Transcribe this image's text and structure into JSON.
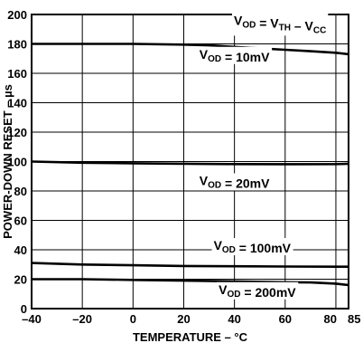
{
  "chart_data": {
    "type": "line",
    "xlabel": "TEMPERATURE – °C",
    "ylabel": "POWER-DOWN RESET – µs",
    "xlim": [
      -40,
      85
    ],
    "ylim": [
      0,
      200
    ],
    "x_ticks": [
      -40,
      -20,
      0,
      20,
      40,
      60,
      80,
      85
    ],
    "x_tick_labels": [
      "–40",
      "–20",
      "0",
      "20",
      "40",
      "60",
      "80",
      "85"
    ],
    "y_ticks": [
      0,
      20,
      40,
      60,
      80,
      100,
      120,
      140,
      160,
      180,
      200
    ],
    "y_tick_labels": [
      "0",
      "20",
      "40",
      "60",
      "80",
      "100",
      "120",
      "140",
      "160",
      "180",
      "200"
    ],
    "grid": true,
    "annotation": {
      "parts": [
        {
          "text": "V",
          "sub": false
        },
        {
          "text": "OD",
          "sub": true
        },
        {
          "text": " = V",
          "sub": false
        },
        {
          "text": "TH",
          "sub": true
        },
        {
          "text": " – V",
          "sub": false
        },
        {
          "text": "CC",
          "sub": true
        }
      ]
    },
    "series": [
      {
        "label_parts": [
          {
            "text": "V",
            "sub": false
          },
          {
            "text": "OD",
            "sub": true
          },
          {
            "text": " = 10mV",
            "sub": false
          }
        ],
        "label_at": [
          40,
          170
        ],
        "x": [
          -40,
          -20,
          0,
          20,
          30,
          40,
          50,
          60,
          70,
          80,
          85
        ],
        "y": [
          180,
          180,
          180,
          179.5,
          179,
          178,
          177,
          176,
          175,
          174,
          173
        ]
      },
      {
        "label_parts": [
          {
            "text": "V",
            "sub": false
          },
          {
            "text": "OD",
            "sub": true
          },
          {
            "text": " = 20mV",
            "sub": false
          }
        ],
        "label_at": [
          40,
          84
        ],
        "x": [
          -40,
          -20,
          0,
          20,
          40,
          60,
          80,
          85
        ],
        "y": [
          100,
          99.2,
          98.8,
          98.5,
          98.3,
          98.2,
          98.3,
          98.5
        ]
      },
      {
        "label_parts": [
          {
            "text": "V",
            "sub": false
          },
          {
            "text": "OD",
            "sub": true
          },
          {
            "text": " = 100mV",
            "sub": false
          }
        ],
        "label_at": [
          47,
          40
        ],
        "x": [
          -40,
          -20,
          0,
          20,
          40,
          60,
          80,
          85
        ],
        "y": [
          31,
          30,
          29.5,
          29,
          28.8,
          28.6,
          28.5,
          28.5
        ]
      },
      {
        "label_parts": [
          {
            "text": "V",
            "sub": false
          },
          {
            "text": "OD",
            "sub": true
          },
          {
            "text": " = 200mV",
            "sub": false
          }
        ],
        "label_at": [
          49,
          10
        ],
        "x": [
          -40,
          -20,
          0,
          20,
          40,
          60,
          70,
          80,
          85
        ],
        "y": [
          20,
          20,
          19.5,
          19,
          18.5,
          18,
          17.8,
          17,
          16
        ]
      }
    ]
  }
}
